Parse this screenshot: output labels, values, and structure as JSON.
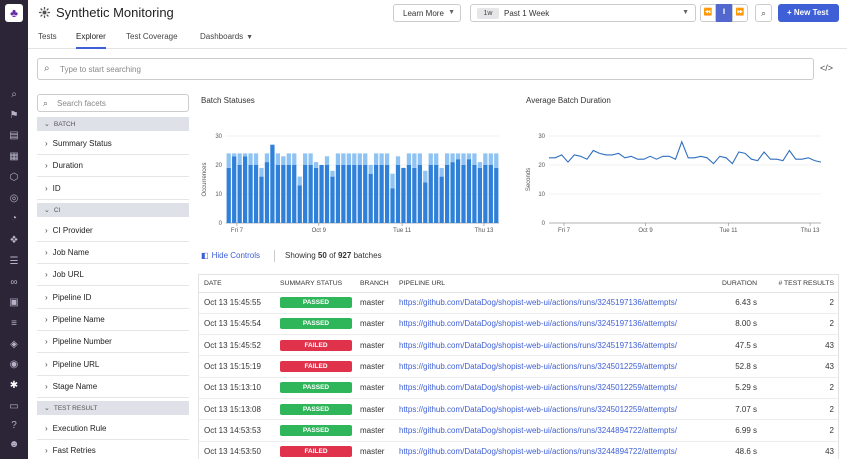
{
  "app": {
    "title": "Synthetic Monitoring",
    "logo_icon": "dog-logo-icon"
  },
  "header": {
    "learn_more": "Learn More",
    "time_badge": "1w",
    "time_value": "Past 1 Week",
    "new_test": "+ New Test"
  },
  "tabs": [
    {
      "label": "Tests"
    },
    {
      "label": "Explorer"
    },
    {
      "label": "Test Coverage"
    },
    {
      "label": "Dashboards"
    }
  ],
  "search": {
    "placeholder": "Type to start searching"
  },
  "facets": {
    "placeholder": "Search facets",
    "groups": [
      {
        "label": "BATCH"
      },
      {
        "label": "CI"
      },
      {
        "label": "TEST RESULT"
      }
    ],
    "items": [
      {
        "label": "Summary Status"
      },
      {
        "label": "Duration"
      },
      {
        "label": "ID"
      },
      {
        "label": "CI Provider"
      },
      {
        "label": "Job Name"
      },
      {
        "label": "Job URL"
      },
      {
        "label": "Pipeline ID"
      },
      {
        "label": "Pipeline Name"
      },
      {
        "label": "Pipeline Number"
      },
      {
        "label": "Pipeline URL"
      },
      {
        "label": "Stage Name"
      },
      {
        "label": "Execution Rule"
      },
      {
        "label": "Fast Retries"
      }
    ]
  },
  "charts": {
    "batch_title": "Batch Statuses",
    "duration_title": "Average Batch Duration"
  },
  "controls": {
    "hide_controls": "Hide Controls",
    "showing_prefix": "Showing",
    "shown": "50",
    "of": "of",
    "total": "927",
    "suffix": "batches"
  },
  "table": {
    "columns": [
      "DATE",
      "SUMMARY STATUS",
      "BRANCH",
      "PIPELINE URL",
      "DURATION",
      "# TEST RESULTS"
    ],
    "rows": [
      {
        "date": "Oct 13 15:45:55",
        "status": "PASSED",
        "branch": "master",
        "url": "https://github.com/DataDog/shopist-web-ui/actions/runs/3245197136/attempts/",
        "duration": "6.43 s",
        "results": "2"
      },
      {
        "date": "Oct 13 15:45:54",
        "status": "PASSED",
        "branch": "master",
        "url": "https://github.com/DataDog/shopist-web-ui/actions/runs/3245197136/attempts/",
        "duration": "8.00 s",
        "results": "2"
      },
      {
        "date": "Oct 13 15:45:52",
        "status": "FAILED",
        "branch": "master",
        "url": "https://github.com/DataDog/shopist-web-ui/actions/runs/3245197136/attempts/",
        "duration": "47.5 s",
        "results": "43"
      },
      {
        "date": "Oct 13 15:15:19",
        "status": "FAILED",
        "branch": "master",
        "url": "https://github.com/DataDog/shopist-web-ui/actions/runs/3245012259/attempts/",
        "duration": "52.8 s",
        "results": "43"
      },
      {
        "date": "Oct 13 15:13:10",
        "status": "PASSED",
        "branch": "master",
        "url": "https://github.com/DataDog/shopist-web-ui/actions/runs/3245012259/attempts/",
        "duration": "5.29 s",
        "results": "2"
      },
      {
        "date": "Oct 13 15:13:08",
        "status": "PASSED",
        "branch": "master",
        "url": "https://github.com/DataDog/shopist-web-ui/actions/runs/3245012259/attempts/",
        "duration": "7.07 s",
        "results": "2"
      },
      {
        "date": "Oct 13 14:53:53",
        "status": "PASSED",
        "branch": "master",
        "url": "https://github.com/DataDog/shopist-web-ui/actions/runs/3244894722/attempts/",
        "duration": "6.99 s",
        "results": "2"
      },
      {
        "date": "Oct 13 14:53:50",
        "status": "FAILED",
        "branch": "master",
        "url": "https://github.com/DataDog/shopist-web-ui/actions/runs/3244894722/attempts/",
        "duration": "48.6 s",
        "results": "43"
      }
    ]
  },
  "colors": {
    "accent": "#3e5fd5",
    "passed": "#2fb55a",
    "failed": "#e0324b",
    "bar_dark": "#2f80d8",
    "bar_light": "#8ec3f3",
    "line": "#2f6fbf"
  },
  "chart_data": [
    {
      "type": "bar",
      "title": "Batch Statuses",
      "ylabel": "Occurrences",
      "ylim": [
        0,
        30
      ],
      "yticks": [
        0,
        10,
        20,
        30
      ],
      "xticks": [
        "Fri 7",
        "Oct 9",
        "Tue 11",
        "Thu 13"
      ],
      "series": [
        {
          "name": "dark",
          "values": [
            19,
            23,
            20,
            23,
            20,
            20,
            16,
            21,
            27,
            20,
            20,
            20,
            20,
            13,
            20,
            20,
            19,
            20,
            20,
            16,
            20,
            20,
            20,
            20,
            20,
            20,
            17,
            20,
            20,
            20,
            12,
            20,
            19,
            20,
            19,
            20,
            14,
            20,
            20,
            16,
            20,
            21,
            22,
            20,
            22,
            20,
            19,
            20,
            20,
            19
          ]
        },
        {
          "name": "light",
          "values": [
            5,
            1,
            4,
            1,
            4,
            4,
            3,
            3,
            0,
            4,
            3,
            4,
            4,
            3,
            4,
            4,
            2,
            0,
            3,
            2,
            4,
            4,
            4,
            4,
            4,
            4,
            3,
            4,
            4,
            4,
            5,
            3,
            0,
            4,
            5,
            4,
            4,
            4,
            4,
            3,
            4,
            3,
            2,
            4,
            2,
            4,
            2,
            4,
            4,
            5
          ]
        }
      ]
    },
    {
      "type": "line",
      "title": "Average Batch Duration",
      "ylabel": "Seconds",
      "ylim": [
        0,
        30
      ],
      "yticks": [
        0,
        10,
        20,
        30
      ],
      "xticks": [
        "Fri 7",
        "Oct 9",
        "Tue 11",
        "Thu 13"
      ],
      "series": [
        {
          "name": "avg",
          "values": [
            22.5,
            22.5,
            23.5,
            21,
            23.5,
            23,
            22,
            25,
            24,
            23.5,
            23.5,
            24,
            22.5,
            23,
            22,
            22,
            23,
            22,
            23,
            23,
            22,
            28,
            22.5,
            22.5,
            23,
            22.5,
            20.5,
            23,
            22.5,
            20.5,
            24.5,
            24,
            22,
            21.5,
            24.5,
            22,
            22,
            21.5,
            25,
            22,
            22,
            22.5,
            21.5,
            21
          ]
        }
      ]
    }
  ]
}
